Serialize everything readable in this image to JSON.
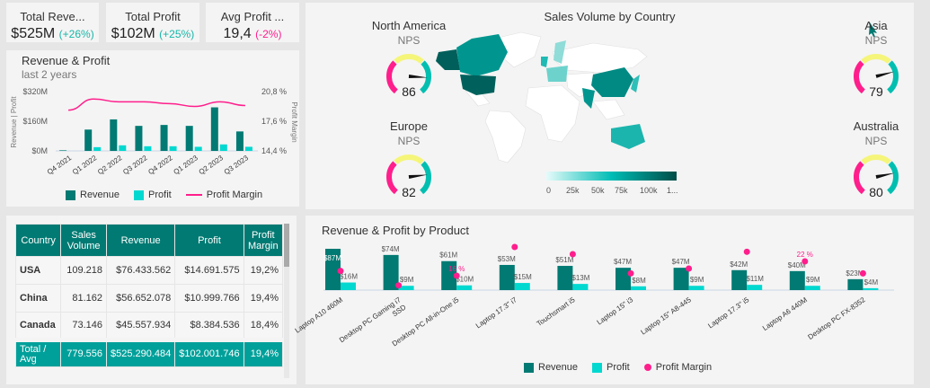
{
  "kpis": [
    {
      "title": "Total Reve...",
      "value": "$525M",
      "change": "(+26%)",
      "trend": "up"
    },
    {
      "title": "Total Profit",
      "value": "$102M",
      "change": "(+25%)",
      "trend": "up"
    },
    {
      "title": "Avg Profit ...",
      "value": "19,4",
      "change": "(-2%)",
      "trend": "down"
    }
  ],
  "colors": {
    "revenue": "#007a73",
    "profit": "#00d8d0",
    "margin": "#ff1e8c"
  },
  "chart_data": [
    {
      "type": "bar",
      "title": "Revenue & Profit",
      "subtitle": "last 2 years",
      "ylabel": "Revenue | Profit",
      "y2label": "Profit Margin",
      "yticks": [
        "$0M",
        "$160M",
        "$320M"
      ],
      "ylim": [
        0,
        320
      ],
      "y2ticks": [
        "14,4 %",
        "17,6 %",
        "20,8 %"
      ],
      "y2lim": [
        14.4,
        20.8
      ],
      "categories": [
        "Q4 2021",
        "Q1 2022",
        "Q2 2022",
        "Q3 2022",
        "Q4 2022",
        "Q1 2023",
        "Q2 2023",
        "Q3 2023"
      ],
      "series": [
        {
          "name": "Revenue",
          "values": [
            3,
            115,
            170,
            135,
            140,
            135,
            235,
            105
          ]
        },
        {
          "name": "Profit",
          "values": [
            0,
            20,
            30,
            25,
            25,
            22,
            35,
            22
          ]
        },
        {
          "name": "Profit Margin",
          "values": [
            18.8,
            20.0,
            19.7,
            19.7,
            19.5,
            19.2,
            19.7,
            19.3
          ]
        }
      ],
      "legend": [
        "Revenue",
        "Profit",
        "Profit Margin"
      ]
    },
    {
      "type": "bar",
      "title": "Revenue & Profit by Product",
      "categories": [
        "Laptop A10 460M",
        "Desktop PC Gaming i7 SSD",
        "Desktop PC All-in-One i5",
        "Laptop 17.3\" i7",
        "Touchsmart i5",
        "Laptop 15\" i3",
        "Laptop 15\" A8-445",
        "Laptop 17.3\" i5",
        "Laptop A6 440M",
        "Desktop PC FX-8352"
      ],
      "series": [
        {
          "name": "Revenue",
          "values": [
            87,
            74,
            61,
            53,
            51,
            47,
            47,
            42,
            40,
            23
          ],
          "labels": [
            "$87M",
            "$74M",
            "$61M",
            "$53M",
            "$51M",
            "$47M",
            "$47M",
            "$42M",
            "$40M",
            "$23M"
          ]
        },
        {
          "name": "Profit",
          "values": [
            16,
            9,
            10,
            15,
            13,
            8,
            9,
            11,
            9,
            4
          ],
          "labels": [
            "$16M",
            "$9M",
            "$10M",
            "$15M",
            "$13M",
            "$8M",
            "$9M",
            "$11M",
            "$9M",
            "$4M"
          ]
        },
        {
          "name": "Profit Margin",
          "values": [
            18,
            12,
            16,
            28,
            25,
            17,
            19,
            26,
            22,
            17
          ],
          "labels": [
            "",
            "",
            "16 %",
            "",
            "",
            "",
            "",
            "",
            "22 %",
            ""
          ]
        }
      ],
      "legend": [
        "Revenue",
        "Profit",
        "Profit Margin"
      ]
    }
  ],
  "table": {
    "headers": [
      "Country",
      "Sales Volume",
      "Revenue",
      "Profit",
      "Profit Margin"
    ],
    "rows": [
      [
        "USA",
        "109.218",
        "$76.433.562",
        "$14.691.575",
        "19,2%"
      ],
      [
        "China",
        "81.162",
        "$56.652.078",
        "$10.999.766",
        "19,4%"
      ],
      [
        "Canada",
        "73.146",
        "$45.557.934",
        "$8.384.536",
        "18,4%"
      ]
    ],
    "total": [
      "Total / Avg",
      "779.556",
      "$525.290.484",
      "$102.001.746",
      "19,4%"
    ]
  },
  "map": {
    "title": "Sales Volume by Country",
    "scale": [
      "0",
      "25k",
      "50k",
      "75k",
      "100k",
      "1..."
    ]
  },
  "gauges": [
    {
      "region": "North America",
      "label": "NPS",
      "value": 86
    },
    {
      "region": "Europe",
      "label": "NPS",
      "value": 82
    },
    {
      "region": "Asia",
      "label": "NPS",
      "value": 79
    },
    {
      "region": "Australia",
      "label": "NPS",
      "value": 80
    }
  ]
}
